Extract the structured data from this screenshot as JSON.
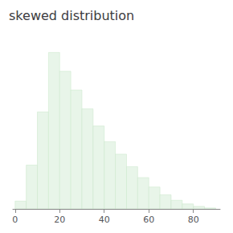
{
  "chart_data": {
    "type": "histogram",
    "title": "skewed distribution",
    "bins": [
      0,
      5,
      10,
      15,
      20,
      25,
      30,
      35,
      40,
      45,
      50,
      55,
      60,
      65,
      70,
      75,
      80,
      85,
      90
    ],
    "values": [
      0.05,
      0.28,
      0.62,
      1.0,
      0.88,
      0.76,
      0.64,
      0.53,
      0.43,
      0.35,
      0.27,
      0.2,
      0.14,
      0.09,
      0.055,
      0.032,
      0.016,
      0.006
    ],
    "color": "#e8f5e9",
    "xlim": [
      -1,
      92
    ],
    "xticks": [
      0,
      20,
      40,
      60,
      80
    ],
    "ylim": [
      0,
      1.12
    ],
    "grid": false,
    "tick_labels": "x"
  }
}
